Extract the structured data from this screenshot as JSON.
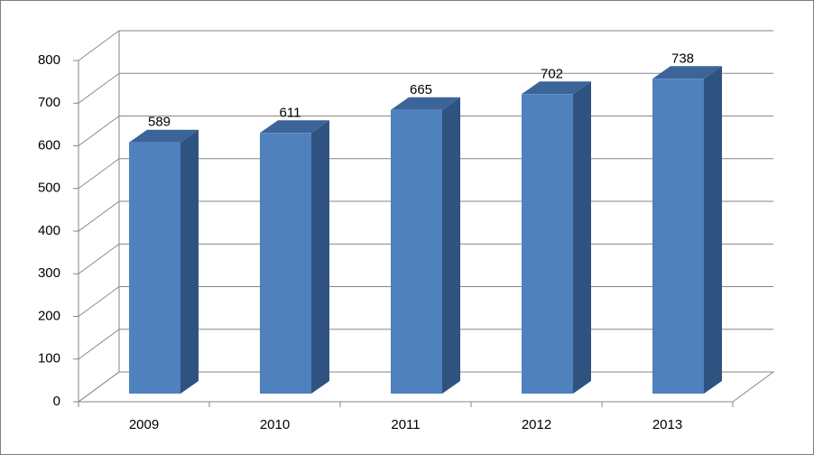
{
  "chart_data": {
    "type": "bar3d",
    "categories": [
      "2009",
      "2010",
      "2011",
      "2012",
      "2013"
    ],
    "values": [
      589,
      611,
      665,
      702,
      738
    ],
    "color": "#4f81bd",
    "ylim": [
      0,
      800
    ],
    "yticks": [
      0,
      100,
      200,
      300,
      400,
      500,
      600,
      700,
      800
    ],
    "grid": true
  }
}
